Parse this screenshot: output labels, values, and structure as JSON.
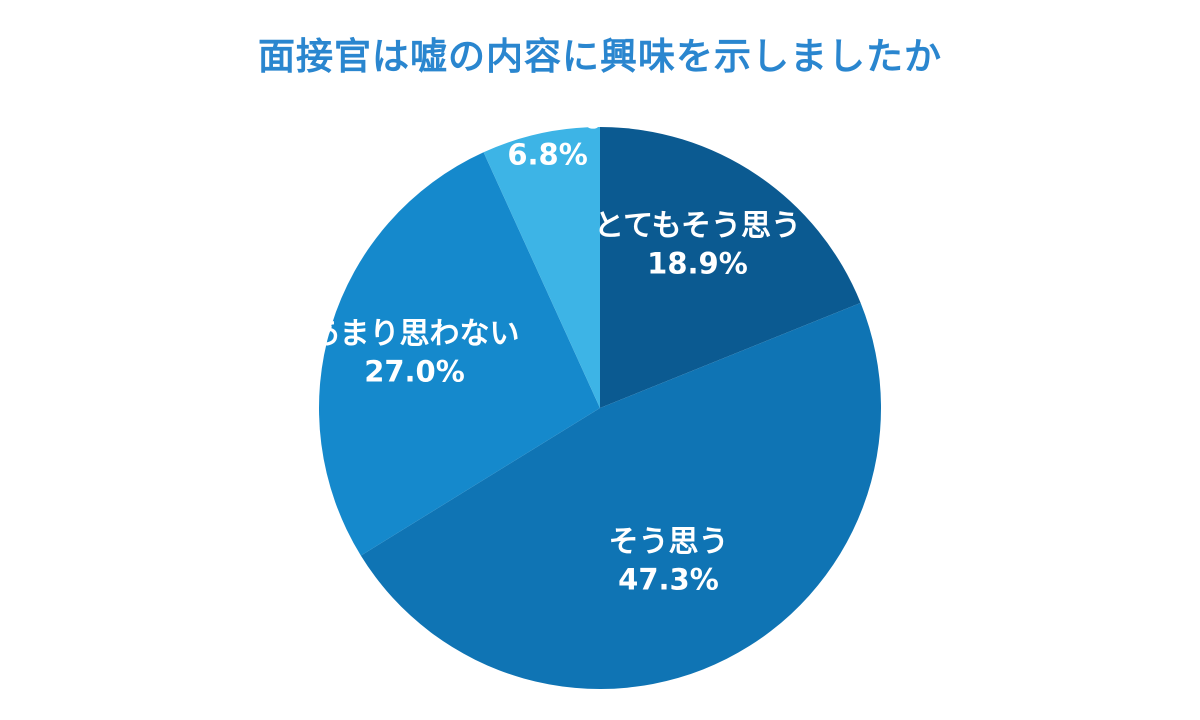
{
  "chart_data": {
    "type": "pie",
    "title": "面接官は嘘の内容に興味を示しましたか",
    "slices": [
      {
        "label": "とてもそう思う",
        "value": 18.9,
        "value_label": "18.9%",
        "color": "#0b5a91"
      },
      {
        "label": "そう思う",
        "value": 47.3,
        "value_label": "47.3%",
        "color": "#0f74b4"
      },
      {
        "label": "あまり思わない",
        "value": 27.0,
        "value_label": "27.0%",
        "color": "#1589cc"
      },
      {
        "label": "全く思わない",
        "value": 6.8,
        "value_label": "6.8%",
        "color": "#3db4e6"
      }
    ],
    "colors": {
      "title": "#2a86cf",
      "label_text": "#ffffff"
    }
  }
}
